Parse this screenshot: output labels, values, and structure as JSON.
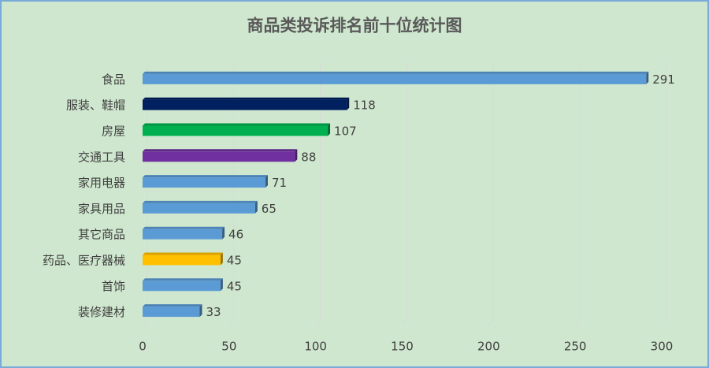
{
  "chart_data": {
    "type": "bar",
    "orientation": "horizontal",
    "title": "商品类投诉排名前十位统计图",
    "categories": [
      "食品",
      "服装、鞋帽",
      "房屋",
      "交通工具",
      "家用电器",
      "家具用品",
      "其它商品",
      "药品、医疗器械",
      "首饰",
      "装修建材"
    ],
    "values": [
      291,
      118,
      107,
      88,
      71,
      65,
      46,
      45,
      45,
      33
    ],
    "colors": [
      "#5b9bd5",
      "#002060",
      "#00b050",
      "#7030a0",
      "#5b9bd5",
      "#5b9bd5",
      "#5b9bd5",
      "#ffc000",
      "#5b9bd5",
      "#5b9bd5"
    ],
    "xlim": [
      0,
      300
    ],
    "xticks": [
      0,
      50,
      100,
      150,
      200,
      250,
      300
    ],
    "grid": true
  }
}
